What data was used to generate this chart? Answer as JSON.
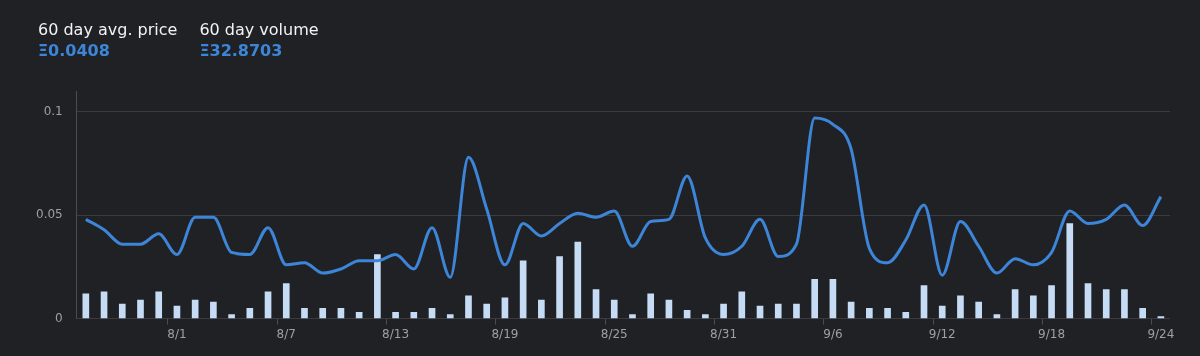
{
  "chart_data": {
    "type": "bar",
    "annotations": [
      "60 day avg. price",
      "Ξ0.0408",
      "60 day volume",
      "Ξ32.8703"
    ],
    "categories": [
      null,
      null,
      null,
      null,
      null,
      "8/1",
      null,
      null,
      null,
      null,
      null,
      "8/7",
      null,
      null,
      null,
      null,
      null,
      "8/13",
      null,
      null,
      null,
      null,
      null,
      "8/19",
      null,
      null,
      null,
      null,
      null,
      "8/25",
      null,
      null,
      null,
      null,
      null,
      "8/31",
      null,
      null,
      null,
      null,
      null,
      "9/6",
      null,
      null,
      null,
      null,
      null,
      "9/12",
      null,
      null,
      null,
      null,
      null,
      "9/18",
      null,
      null,
      null,
      null,
      null,
      "9/24"
    ],
    "series": [
      {
        "type": "line",
        "color": "#3d85d8",
        "values": [
          0.048,
          0.043,
          0.036,
          0.036,
          0.041,
          0.031,
          0.049,
          0.049,
          0.032,
          0.031,
          0.044,
          0.026,
          0.027,
          0.022,
          0.024,
          0.028,
          0.028,
          0.031,
          0.024,
          0.044,
          0.02,
          0.078,
          0.053,
          0.026,
          0.046,
          0.04,
          0.046,
          0.051,
          0.049,
          0.052,
          0.035,
          0.047,
          0.048,
          0.069,
          0.039,
          0.031,
          0.035,
          0.048,
          0.03,
          0.036,
          0.097,
          0.094,
          0.082,
          0.034,
          0.027,
          0.038,
          0.055,
          0.021,
          0.047,
          0.035,
          0.022,
          0.029,
          0.026,
          0.032,
          0.052,
          0.046,
          0.048,
          0.055,
          0.045,
          0.059
        ]
      },
      {
        "color": "#c6dcf5",
        "values": [
          0.012,
          0.013,
          0.007,
          0.009,
          0.013,
          0.006,
          0.009,
          0.008,
          0.002,
          0.005,
          0.013,
          0.017,
          0.005,
          0.005,
          0.005,
          0.003,
          0.031,
          0.003,
          0.003,
          0.005,
          0.002,
          0.011,
          0.007,
          0.01,
          0.028,
          0.009,
          0.03,
          0.037,
          0.014,
          0.009,
          0.002,
          0.012,
          0.009,
          0.004,
          0.002,
          0.007,
          0.013,
          0.006,
          0.007,
          0.007,
          0.019,
          0.019,
          0.008,
          0.005,
          0.005,
          0.003,
          0.016,
          0.006,
          0.011,
          0.008,
          0.002,
          0.014,
          0.011,
          0.016,
          0.046,
          0.017,
          0.014,
          0.014,
          0.005,
          0.001
        ]
      }
    ],
    "ylim": [
      0,
      0.11
    ],
    "yticks": [
      0,
      0.05,
      0.1
    ],
    "grid": "y",
    "legend": false
  }
}
